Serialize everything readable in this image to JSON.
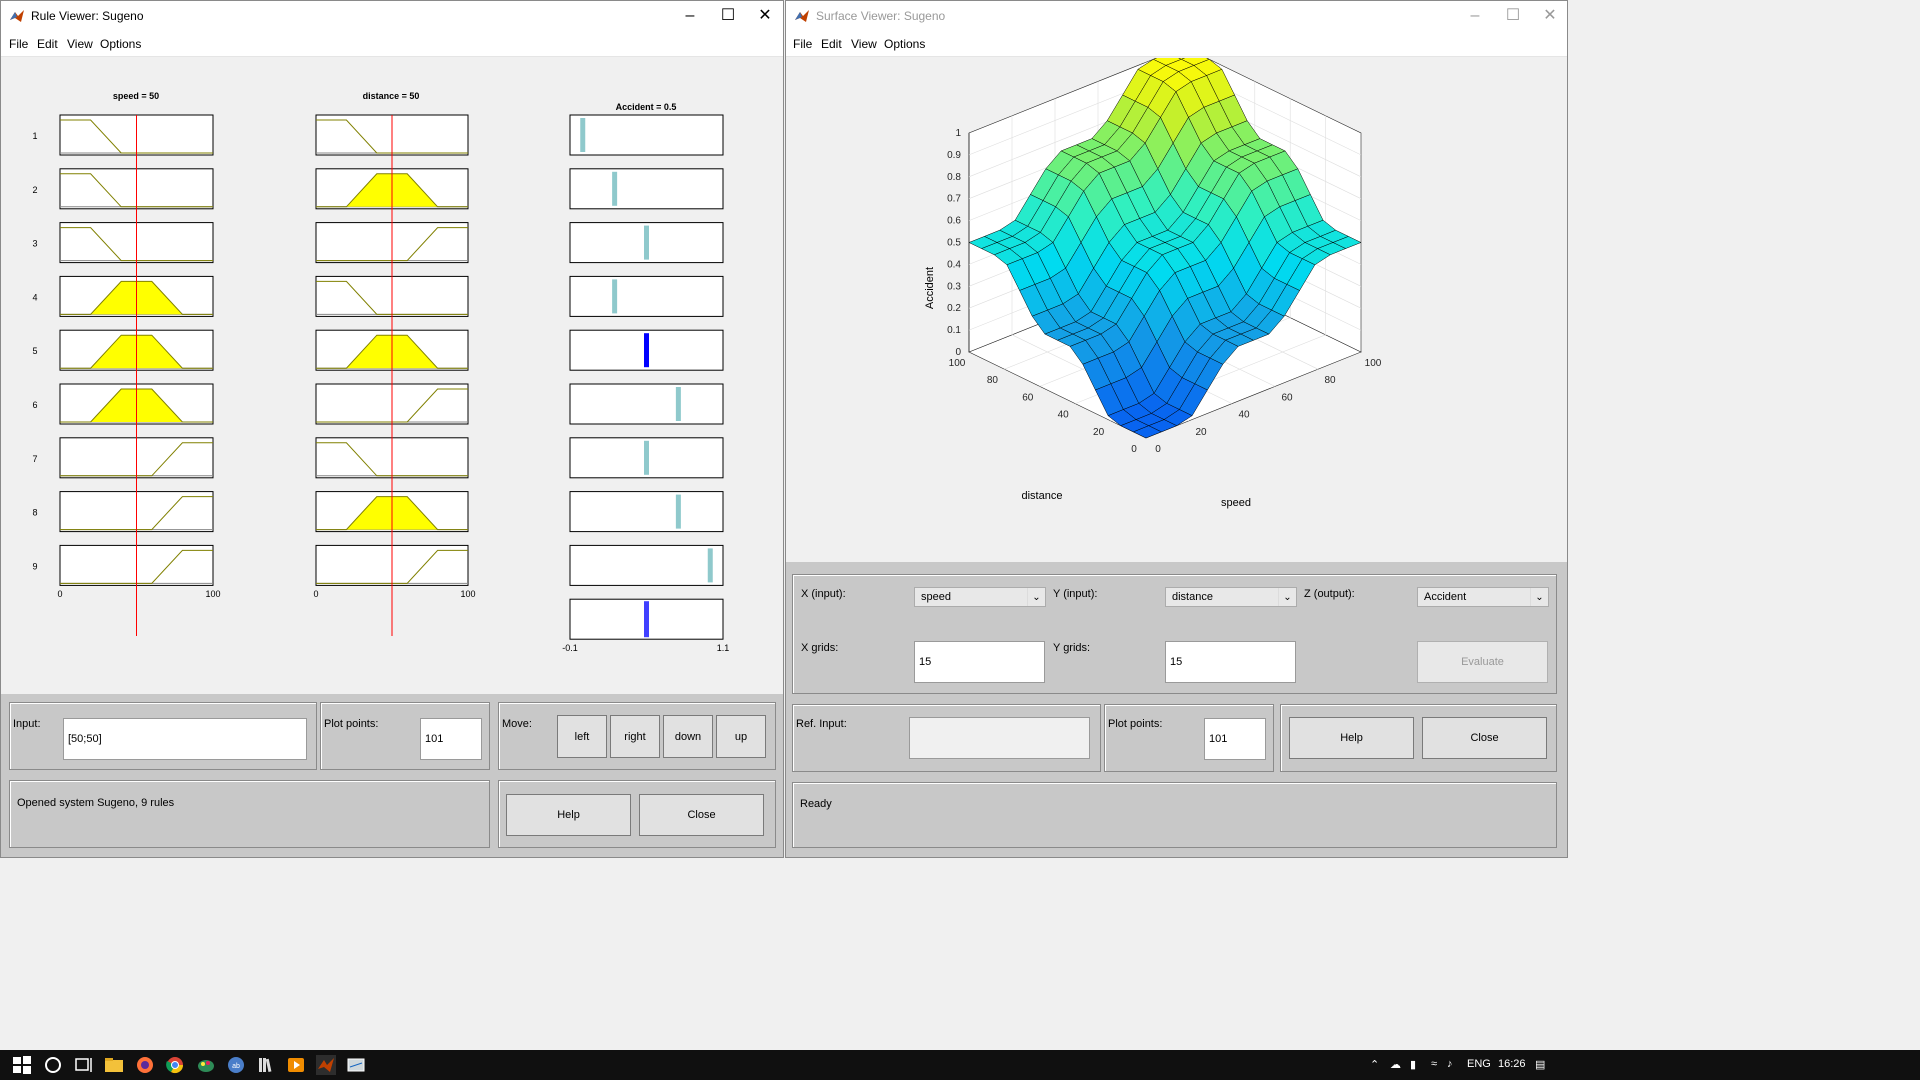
{
  "rule_viewer": {
    "title": "Rule Viewer: Sugeno",
    "menu": [
      "File",
      "Edit",
      "View",
      "Options"
    ],
    "speed_title": "speed = 50",
    "distance_title": "distance = 50",
    "output_title": "Accident = 0.5",
    "rule_numbers": [
      "1",
      "2",
      "3",
      "4",
      "5",
      "6",
      "7",
      "8",
      "9"
    ],
    "input_axis": {
      "min_label": "0",
      "max_label": "100",
      "min": 0,
      "max": 100,
      "value": 50
    },
    "output_axis": {
      "min_label": "-0.1",
      "max_label": "1.1",
      "min": -0.1,
      "max": 1.1
    },
    "rules": [
      {
        "speed": "low",
        "distance": "low",
        "fired": false,
        "output": 0.0
      },
      {
        "speed": "low",
        "distance": "mid",
        "fired": false,
        "output": 0.25
      },
      {
        "speed": "low",
        "distance": "high",
        "fired": false,
        "output": 0.5
      },
      {
        "speed": "mid",
        "distance": "low",
        "fired": false,
        "output": 0.25
      },
      {
        "speed": "mid",
        "distance": "mid",
        "fired": true,
        "output": 0.5
      },
      {
        "speed": "mid",
        "distance": "high",
        "fired": false,
        "output": 0.75
      },
      {
        "speed": "high",
        "distance": "low",
        "fired": false,
        "output": 0.5
      },
      {
        "speed": "high",
        "distance": "mid",
        "fired": false,
        "output": 0.75
      },
      {
        "speed": "high",
        "distance": "high",
        "fired": false,
        "output": 1.0
      }
    ],
    "aggregate_output": 0.5,
    "input_label": "Input:",
    "input_value": "[50;50]",
    "plot_points_label": "Plot points:",
    "plot_points_value": "101",
    "move_label": "Move:",
    "move_buttons": [
      "left",
      "right",
      "down",
      "up"
    ],
    "status": "Opened system Sugeno, 9 rules",
    "help": "Help",
    "close": "Close",
    "colors": {
      "fill": "#ffff00",
      "edge": "#808000",
      "redline": "#ff0000",
      "bar": "#8fc9cc",
      "bar_fired": "#0000ff"
    }
  },
  "surface_viewer": {
    "title": "Surface Viewer: Sugeno",
    "menu": [
      "File",
      "Edit",
      "View",
      "Options"
    ],
    "z_label": "Accident",
    "x_label": "speed",
    "y_label": "distance",
    "z_ticks": [
      "0",
      "0.1",
      "0.2",
      "0.3",
      "0.4",
      "0.5",
      "0.6",
      "0.7",
      "0.8",
      "0.9",
      "1"
    ],
    "x_ticks": [
      "0",
      "20",
      "40",
      "60",
      "80",
      "100"
    ],
    "y_ticks": [
      "0",
      "20",
      "40",
      "60",
      "80",
      "100"
    ],
    "x_input_label": "X (input):",
    "x_input_value": "speed",
    "y_input_label": "Y (input):",
    "y_input_value": "distance",
    "z_output_label": "Z (output):",
    "z_output_value": "Accident",
    "x_grids_label": "X grids:",
    "x_grids_value": "15",
    "y_grids_label": "Y grids:",
    "y_grids_value": "15",
    "evaluate": "Evaluate",
    "ref_input_label": "Ref. Input:",
    "ref_input_value": "",
    "plot_points_label": "Plot points:",
    "plot_points_value": "101",
    "help": "Help",
    "close": "Close",
    "status": "Ready"
  },
  "taskbar": {
    "lang": "ENG",
    "time": "16:26"
  }
}
